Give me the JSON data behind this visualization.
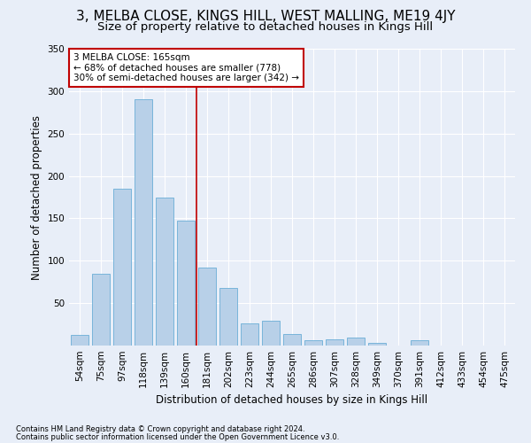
{
  "title": "3, MELBA CLOSE, KINGS HILL, WEST MALLING, ME19 4JY",
  "subtitle": "Size of property relative to detached houses in Kings Hill",
  "xlabel": "Distribution of detached houses by size in Kings Hill",
  "ylabel": "Number of detached properties",
  "categories": [
    "54sqm",
    "75sqm",
    "97sqm",
    "118sqm",
    "139sqm",
    "160sqm",
    "181sqm",
    "202sqm",
    "223sqm",
    "244sqm",
    "265sqm",
    "286sqm",
    "307sqm",
    "328sqm",
    "349sqm",
    "370sqm",
    "391sqm",
    "412sqm",
    "433sqm",
    "454sqm",
    "475sqm"
  ],
  "values": [
    13,
    85,
    185,
    290,
    175,
    147,
    92,
    68,
    26,
    29,
    14,
    6,
    7,
    9,
    3,
    0,
    6,
    0,
    0,
    0,
    0
  ],
  "bar_color": "#b8d0e8",
  "bar_edge_color": "#6aaed6",
  "vline_color": "#c00000",
  "annotation_text": "3 MELBA CLOSE: 165sqm\n← 68% of detached houses are smaller (778)\n30% of semi-detached houses are larger (342) →",
  "annotation_box_color": "#ffffff",
  "annotation_box_edge": "#c00000",
  "footnote1": "Contains HM Land Registry data © Crown copyright and database right 2024.",
  "footnote2": "Contains public sector information licensed under the Open Government Licence v3.0.",
  "bg_color": "#e8eef8",
  "ylim": [
    0,
    350
  ],
  "yticks": [
    0,
    50,
    100,
    150,
    200,
    250,
    300,
    350
  ],
  "title_fontsize": 11,
  "subtitle_fontsize": 9.5,
  "axis_label_fontsize": 8.5,
  "tick_fontsize": 7.5,
  "annot_fontsize": 7.5,
  "footnote_fontsize": 6
}
